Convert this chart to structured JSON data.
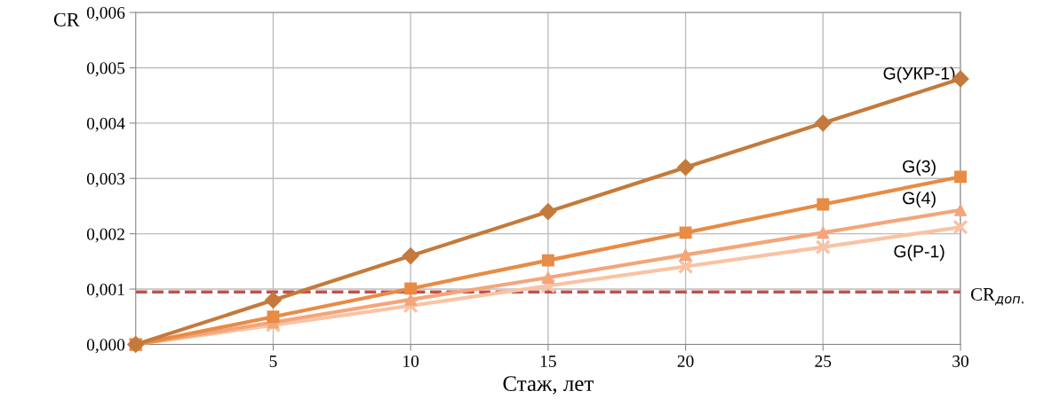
{
  "chart_data": {
    "type": "line",
    "xlabel": "Стаж, лет",
    "ylabel": "CR",
    "x": [
      0,
      5,
      10,
      15,
      20,
      25,
      30
    ],
    "series": [
      {
        "name": "G(УКР-1)",
        "color": "#c47a3c",
        "marker": "diamond",
        "values": [
          0,
          0.0008,
          0.0016,
          0.0024,
          0.0032,
          0.004,
          0.0048
        ]
      },
      {
        "name": "G(3)",
        "color": "#e88b45",
        "marker": "square",
        "values": [
          0,
          0.0005,
          0.00101,
          0.00152,
          0.00202,
          0.00253,
          0.00303
        ]
      },
      {
        "name": "G(4)",
        "color": "#f4a57a",
        "marker": "triangle",
        "values": [
          0,
          0.0004,
          0.00081,
          0.00121,
          0.00162,
          0.00202,
          0.00243
        ]
      },
      {
        "name": "G(Р-1)",
        "color": "#f9c3a4",
        "marker": "cross",
        "values": [
          0,
          0.00035,
          0.0007,
          0.00106,
          0.00141,
          0.00176,
          0.00212
        ]
      }
    ],
    "xlim": [
      0,
      30
    ],
    "xticks": [
      5,
      10,
      15,
      20,
      25,
      30
    ],
    "ylim": [
      0,
      0.006
    ],
    "yticks": [
      {
        "value": 0,
        "label": "0,000"
      },
      {
        "value": 0.001,
        "label": "0,001"
      },
      {
        "value": 0.002,
        "label": "0,002"
      },
      {
        "value": 0.003,
        "label": "0,003"
      },
      {
        "value": 0.004,
        "label": "0,004"
      },
      {
        "value": 0.005,
        "label": "0,005"
      },
      {
        "value": 0.006,
        "label": "0,006"
      }
    ],
    "ref_lines": [
      {
        "axis": "y",
        "value": 0.00095,
        "label": "CR$_{доп.}$",
        "color": "#c0504d",
        "line_style": "dashed"
      }
    ],
    "grid": true,
    "line_style": "solid"
  }
}
